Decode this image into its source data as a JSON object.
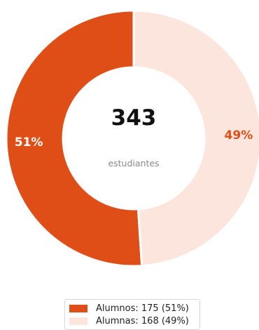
{
  "chart_data": {
    "type": "pie",
    "donut": true,
    "total": "343",
    "center_subtitle": "estudiantes",
    "slices": [
      {
        "name": "Alumnos",
        "value": 175,
        "percent": "51%",
        "legend": "Alumnos: 175 (51%)",
        "color": "#e04e17",
        "label_color": "#ffffff"
      },
      {
        "name": "Alumnas",
        "value": 168,
        "percent": "49%",
        "legend": "Alumnas: 168 (49%)",
        "color": "#fce5dd",
        "label_color": "#e04e17"
      }
    ],
    "legend_position": "bottom"
  }
}
